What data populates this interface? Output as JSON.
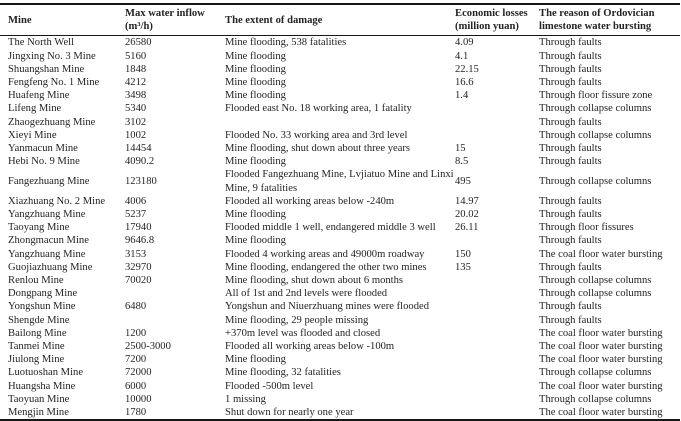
{
  "table": {
    "columns": [
      {
        "id": "mine",
        "label_lines": [
          "Mine"
        ]
      },
      {
        "id": "inflow",
        "label_lines": [
          "Max water inflow",
          "(m³/h)"
        ]
      },
      {
        "id": "damage",
        "label_lines": [
          "The extent of damage"
        ]
      },
      {
        "id": "losses",
        "label_lines": [
          "Economic losses",
          "(million yuan)"
        ]
      },
      {
        "id": "reason",
        "label_lines": [
          "The reason of Ordovician",
          "limestone water bursting"
        ]
      }
    ],
    "rows": [
      {
        "mine": "The North Well",
        "inflow": "26580",
        "damage": "Mine flooding, 538 fatalities",
        "losses": "4.09",
        "reason": "Through faults"
      },
      {
        "mine": "Jingxing No. 3 Mine",
        "inflow": "5160",
        "damage": "Mine flooding",
        "losses": "4.1",
        "reason": "Through faults"
      },
      {
        "mine": "Shuangshan Mine",
        "inflow": "1848",
        "damage": "Mine flooding",
        "losses": "22.15",
        "reason": "Through faults"
      },
      {
        "mine": "Fengfeng No. 1 Mine",
        "inflow": "4212",
        "damage": "Mine flooding",
        "losses": "16.6",
        "reason": "Through faults"
      },
      {
        "mine": "Huafeng Mine",
        "inflow": "3498",
        "damage": "Mine flooding",
        "losses": "1.4",
        "reason": "Through floor fissure zone"
      },
      {
        "mine": "Lifeng Mine",
        "inflow": "5340",
        "damage": "Flooded east No. 18 working area, 1 fatality",
        "losses": "",
        "reason": "Through collapse columns"
      },
      {
        "mine": "Zhaogezhuang Mine",
        "inflow": "3102",
        "damage": "",
        "losses": "",
        "reason": "Through faults"
      },
      {
        "mine": "Xieyi Mine",
        "inflow": "1002",
        "damage": "Flooded No. 33 working area and 3rd level",
        "losses": "",
        "reason": "Through collapse columns"
      },
      {
        "mine": "Yanmacun Mine",
        "inflow": "14454",
        "damage": "Mine flooding, shut down about three years",
        "losses": "15",
        "reason": "Through faults"
      },
      {
        "mine": "Hebi No. 9 Mine",
        "inflow": "4090.2",
        "damage": "Mine flooding",
        "losses": "8.5",
        "reason": "Through faults"
      },
      {
        "mine": "Fangezhuang Mine",
        "inflow": "123180",
        "damage": "Flooded Fangezhuang Mine, Lvjiatuo Mine and Linxi Mine, 9 fatalities",
        "losses": "495",
        "reason": "Through collapse columns"
      },
      {
        "mine": "Xiazhuang No. 2 Mine",
        "inflow": "4006",
        "damage": "Flooded all working areas below -240m",
        "losses": "14.97",
        "reason": "Through faults"
      },
      {
        "mine": "Yangzhuang Mine",
        "inflow": "5237",
        "damage": "Mine flooding",
        "losses": "20.02",
        "reason": "Through faults"
      },
      {
        "mine": "Taoyang Mine",
        "inflow": "17940",
        "damage": "Flooded middle 1 well, endangered middle 3 well",
        "losses": "26.11",
        "reason": "Through floor fissures"
      },
      {
        "mine": "Zhongmacun Mine",
        "inflow": "9646.8",
        "damage": "Mine flooding",
        "losses": "",
        "reason": "Through faults"
      },
      {
        "mine": "Yangzhuang Mine",
        "inflow": "3153",
        "damage": "Flooded 4 working areas and 49000m roadway",
        "losses": "150",
        "reason": "The coal floor water bursting"
      },
      {
        "mine": "Guojiazhuang Mine",
        "inflow": "32970",
        "damage": "Mine flooding, endangered the other two mines",
        "losses": "135",
        "reason": "Through faults"
      },
      {
        "mine": "Renlou Mine",
        "inflow": "70020",
        "damage": "Mine flooding, shut down about 6 months",
        "losses": "",
        "reason": "Through collapse columns"
      },
      {
        "mine": "Dongpang Mine",
        "inflow": "",
        "damage": "All of 1st and 2nd levels were flooded",
        "losses": "",
        "reason": "Through collapse columns"
      },
      {
        "mine": "Yongshun Mine",
        "inflow": "6480",
        "damage": "Yongshun and Niuerzhuang mines were flooded",
        "losses": "",
        "reason": "Through faults"
      },
      {
        "mine": "Shengde Mine",
        "inflow": "",
        "damage": "Mine flooding, 29 people missing",
        "losses": "",
        "reason": "Through faults"
      },
      {
        "mine": "Bailong Mine",
        "inflow": "1200",
        "damage": "+370m level was flooded and closed",
        "losses": "",
        "reason": "The coal floor water bursting"
      },
      {
        "mine": "Tanmei Mine",
        "inflow": "2500-3000",
        "damage": "Flooded all working areas below -100m",
        "losses": "",
        "reason": "The coal floor water bursting"
      },
      {
        "mine": "Jiulong Mine",
        "inflow": "7200",
        "damage": "Mine flooding",
        "losses": "",
        "reason": "The coal floor water bursting"
      },
      {
        "mine": "Luotuoshan Mine",
        "inflow": "72000",
        "damage": "Mine flooding, 32 fatalities",
        "losses": "",
        "reason": "Through collapse columns"
      },
      {
        "mine": "Huangsha Mine",
        "inflow": "6000",
        "damage": "Flooded -500m level",
        "losses": "",
        "reason": "The coal floor water bursting"
      },
      {
        "mine": "Taoyuan Mine",
        "inflow": "10000",
        "damage": "1 missing",
        "losses": "",
        "reason": "Through collapse columns"
      },
      {
        "mine": "Mengjin Mine",
        "inflow": "1780",
        "damage": "Shut down for nearly one year",
        "losses": "",
        "reason": "The coal floor water bursting"
      }
    ]
  }
}
